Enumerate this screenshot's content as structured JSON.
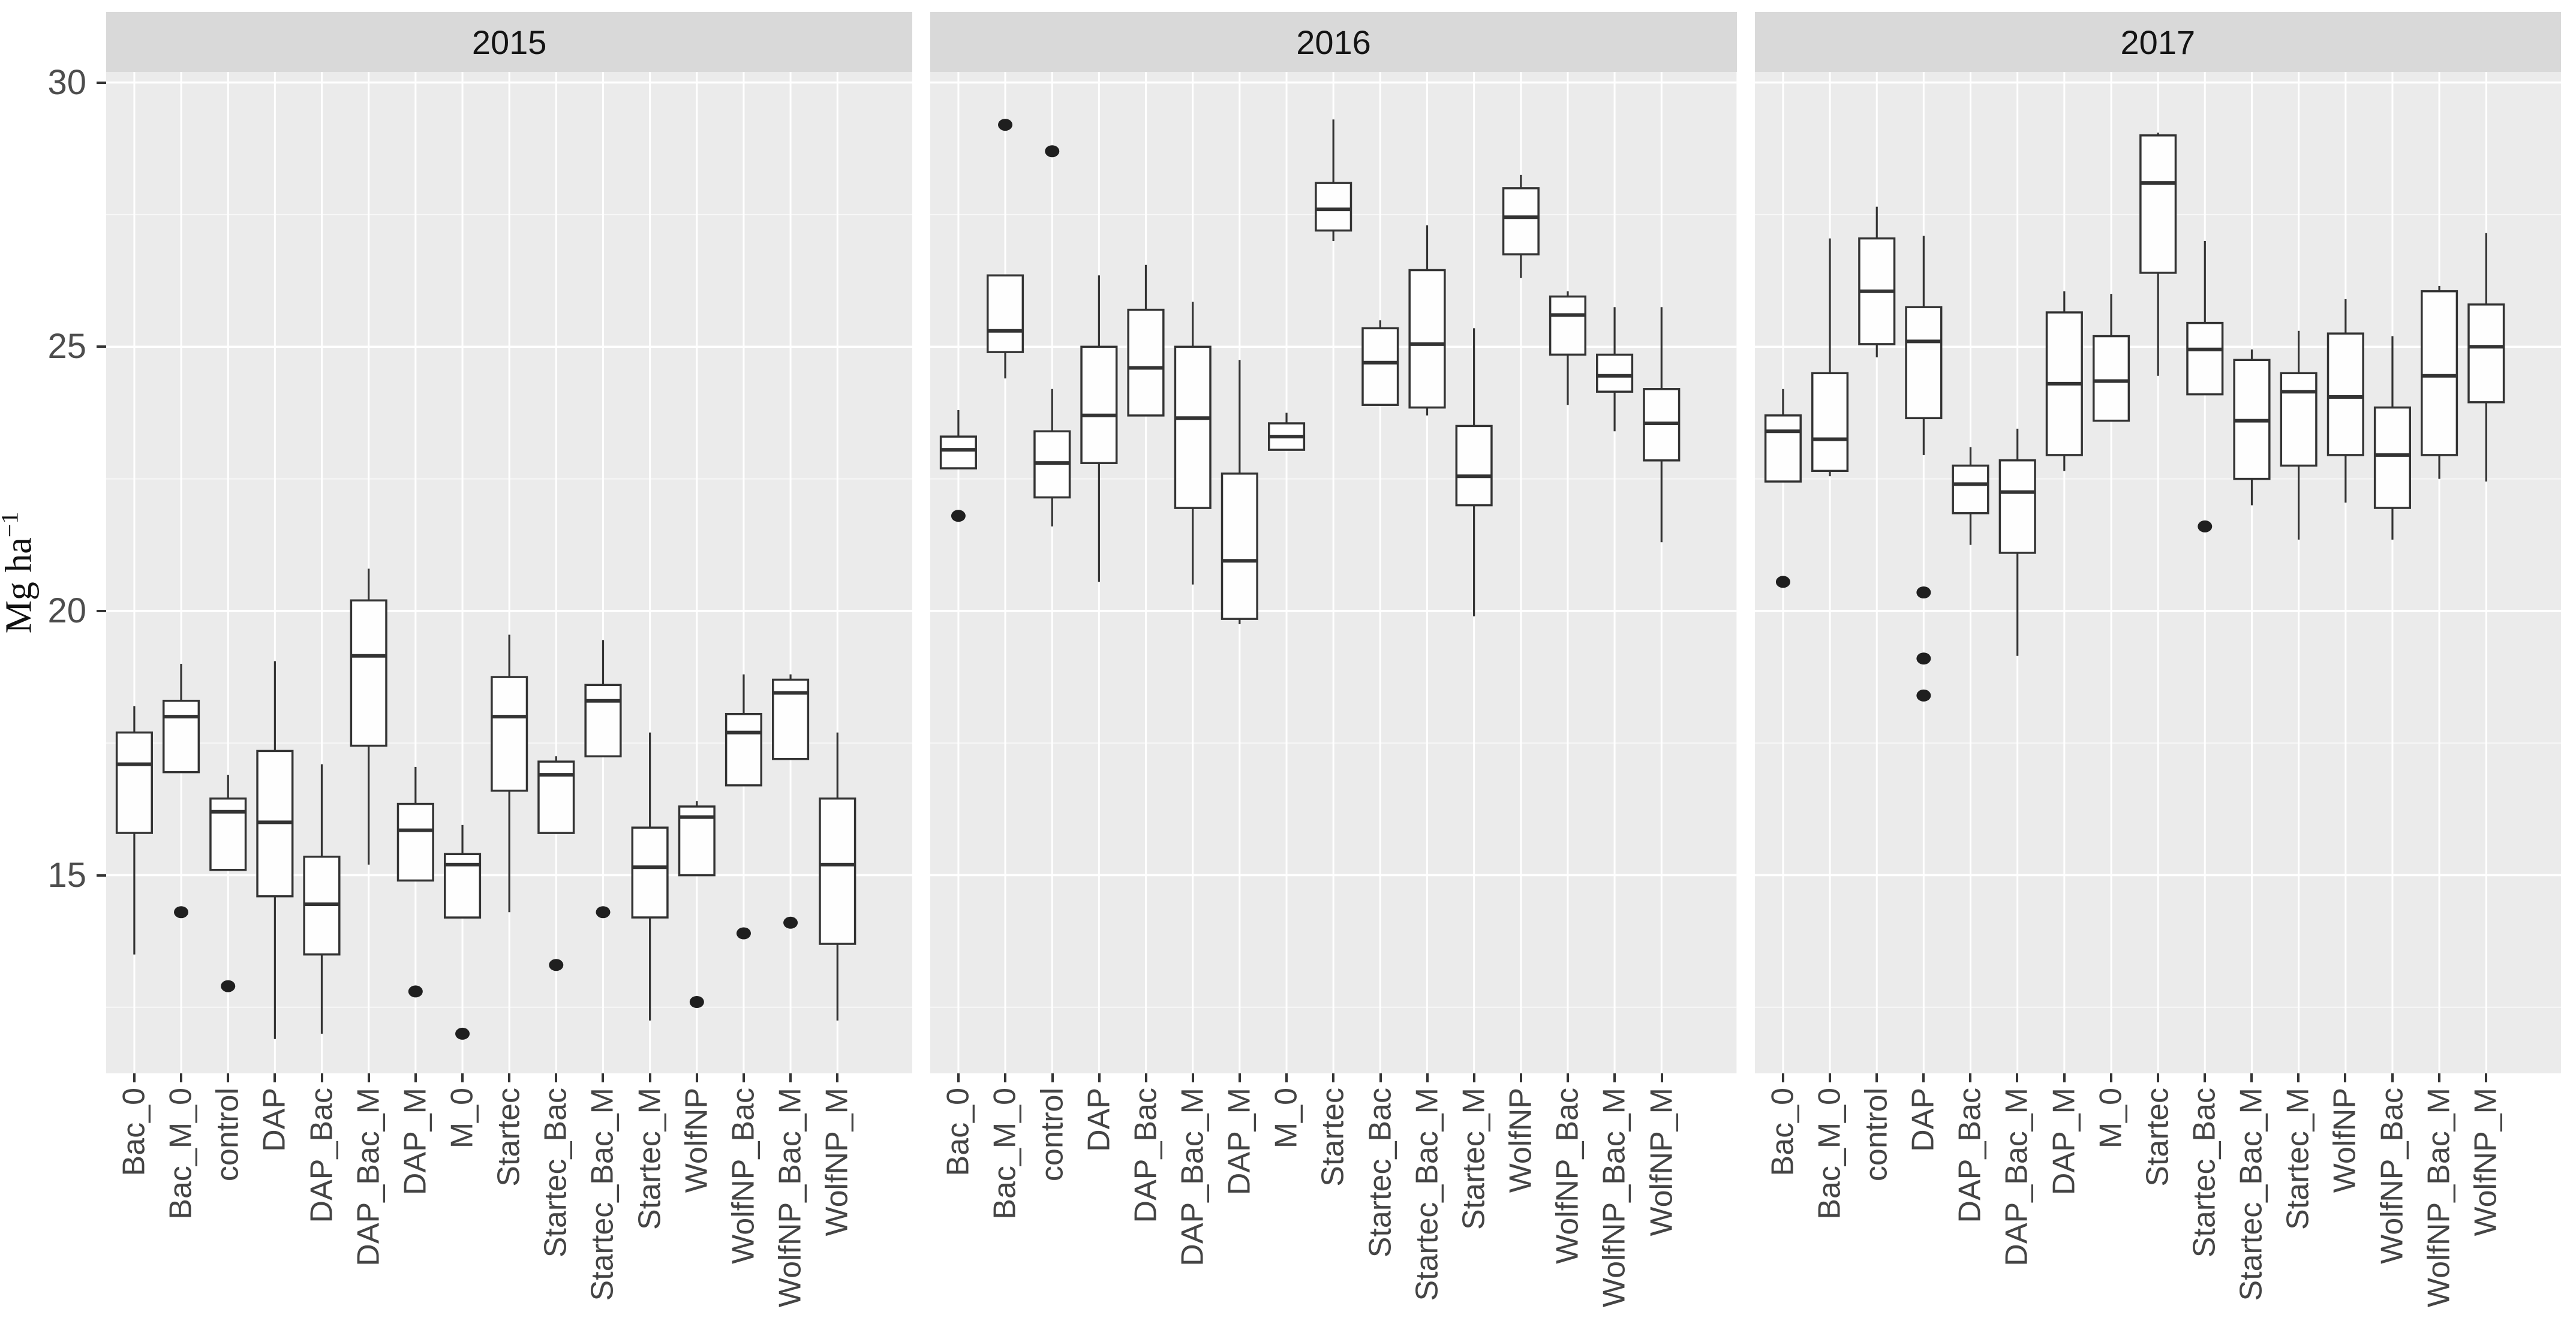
{
  "y_axis": {
    "title_base": "Mg ha",
    "title_sup": "−1",
    "ticks": [
      "30",
      "25",
      "20",
      "15"
    ],
    "tick_values": [
      30,
      25,
      20,
      15
    ]
  },
  "colors": {
    "panel_background": "#ebebeb",
    "strip_background": "#d9d9d9",
    "gridline": "#ffffff",
    "box_stroke": "#333333",
    "box_fill": "#fefefe",
    "outlier": "#1f1f1f",
    "axis_text": "#4d4d4d",
    "strip_text": "#141414"
  },
  "chart_data": {
    "type": "boxplot",
    "title": "",
    "xlabel": "",
    "ylabel": "Mg ha⁻¹",
    "ylim": [
      11.25,
      30.2
    ],
    "y_major_gridlines": [
      15,
      20,
      25,
      30
    ],
    "y_minor_gridlines": [
      12.5,
      17.5,
      22.5,
      27.5
    ],
    "grid": "white on gray panel",
    "legend": "none",
    "facets": [
      "2015",
      "2016",
      "2017"
    ],
    "categories": [
      "Bac_0",
      "Bac_M_0",
      "control",
      "DAP",
      "DAP_Bac",
      "DAP_Bac_M",
      "DAP_M",
      "M_0",
      "Startec",
      "Startec_Bac",
      "Startec_Bac_M",
      "Startec_M",
      "WolfNP",
      "WolfNP_Bac",
      "WolfNP_Bac_M",
      "WolfNP_M"
    ],
    "series": [
      {
        "name": "2015",
        "boxes": [
          {
            "category": "Bac_0",
            "lo": 13.5,
            "q1": 15.8,
            "med": 17.1,
            "q3": 17.7,
            "hi": 18.2,
            "outliers": []
          },
          {
            "category": "Bac_M_0",
            "lo": 16.95,
            "q1": 16.95,
            "med": 18.0,
            "q3": 18.3,
            "hi": 19.0,
            "outliers": [
              14.3
            ]
          },
          {
            "category": "control",
            "lo": 15.1,
            "q1": 15.1,
            "med": 16.2,
            "q3": 16.45,
            "hi": 16.9,
            "outliers": [
              12.9
            ]
          },
          {
            "category": "DAP",
            "lo": 11.9,
            "q1": 14.6,
            "med": 16.0,
            "q3": 17.35,
            "hi": 19.05,
            "outliers": []
          },
          {
            "category": "DAP_Bac",
            "lo": 12.0,
            "q1": 13.5,
            "med": 14.45,
            "q3": 15.35,
            "hi": 17.1,
            "outliers": []
          },
          {
            "category": "DAP_Bac_M",
            "lo": 15.2,
            "q1": 17.45,
            "med": 19.15,
            "q3": 20.2,
            "hi": 20.8,
            "outliers": []
          },
          {
            "category": "DAP_M",
            "lo": 14.9,
            "q1": 14.9,
            "med": 15.85,
            "q3": 16.35,
            "hi": 17.05,
            "outliers": [
              12.8
            ]
          },
          {
            "category": "M_0",
            "lo": 14.2,
            "q1": 14.2,
            "med": 15.2,
            "q3": 15.4,
            "hi": 15.95,
            "outliers": [
              12.0
            ]
          },
          {
            "category": "Startec",
            "lo": 14.3,
            "q1": 16.6,
            "med": 18.0,
            "q3": 18.75,
            "hi": 19.55,
            "outliers": []
          },
          {
            "category": "Startec_Bac",
            "lo": 15.8,
            "q1": 15.8,
            "med": 16.9,
            "q3": 17.15,
            "hi": 17.25,
            "outliers": [
              13.3
            ]
          },
          {
            "category": "Startec_Bac_M",
            "lo": 17.25,
            "q1": 17.25,
            "med": 18.3,
            "q3": 18.6,
            "hi": 19.45,
            "outliers": [
              14.3
            ]
          },
          {
            "category": "Startec_M",
            "lo": 12.25,
            "q1": 14.2,
            "med": 15.15,
            "q3": 15.9,
            "hi": 17.7,
            "outliers": []
          },
          {
            "category": "WolfNP",
            "lo": 15.0,
            "q1": 15.0,
            "med": 16.1,
            "q3": 16.3,
            "hi": 16.4,
            "outliers": [
              12.6
            ]
          },
          {
            "category": "WolfNP_Bac",
            "lo": 16.7,
            "q1": 16.7,
            "med": 17.7,
            "q3": 18.05,
            "hi": 18.8,
            "outliers": [
              13.9
            ]
          },
          {
            "category": "WolfNP_Bac_M",
            "lo": 17.2,
            "q1": 17.2,
            "med": 18.45,
            "q3": 18.7,
            "hi": 18.8,
            "outliers": [
              14.1
            ]
          },
          {
            "category": "WolfNP_M",
            "lo": 12.25,
            "q1": 13.7,
            "med": 15.2,
            "q3": 16.45,
            "hi": 17.7,
            "outliers": []
          }
        ]
      },
      {
        "name": "2016",
        "boxes": [
          {
            "category": "Bac_0",
            "lo": 22.7,
            "q1": 22.7,
            "med": 23.05,
            "q3": 23.3,
            "hi": 23.8,
            "outliers": [
              21.8
            ]
          },
          {
            "category": "Bac_M_0",
            "lo": 24.4,
            "q1": 24.9,
            "med": 25.3,
            "q3": 26.35,
            "hi": 26.35,
            "outliers": [
              29.2
            ]
          },
          {
            "category": "control",
            "lo": 21.6,
            "q1": 22.15,
            "med": 22.8,
            "q3": 23.4,
            "hi": 24.2,
            "outliers": [
              28.7
            ]
          },
          {
            "category": "DAP",
            "lo": 20.55,
            "q1": 22.8,
            "med": 23.7,
            "q3": 25.0,
            "hi": 26.35,
            "outliers": []
          },
          {
            "category": "DAP_Bac",
            "lo": 23.7,
            "q1": 23.7,
            "med": 24.6,
            "q3": 25.7,
            "hi": 26.55,
            "outliers": []
          },
          {
            "category": "DAP_Bac_M",
            "lo": 20.5,
            "q1": 21.95,
            "med": 23.65,
            "q3": 25.0,
            "hi": 25.85,
            "outliers": []
          },
          {
            "category": "DAP_M",
            "lo": 19.75,
            "q1": 19.85,
            "med": 20.95,
            "q3": 22.6,
            "hi": 24.75,
            "outliers": []
          },
          {
            "category": "M_0",
            "lo": 23.05,
            "q1": 23.05,
            "med": 23.3,
            "q3": 23.55,
            "hi": 23.75,
            "outliers": []
          },
          {
            "category": "Startec",
            "lo": 27.0,
            "q1": 27.2,
            "med": 27.6,
            "q3": 28.1,
            "hi": 29.3,
            "outliers": []
          },
          {
            "category": "Startec_Bac",
            "lo": 23.9,
            "q1": 23.9,
            "med": 24.7,
            "q3": 25.35,
            "hi": 25.5,
            "outliers": []
          },
          {
            "category": "Startec_Bac_M",
            "lo": 23.7,
            "q1": 23.85,
            "med": 25.05,
            "q3": 26.45,
            "hi": 27.3,
            "outliers": []
          },
          {
            "category": "Startec_M",
            "lo": 19.9,
            "q1": 22.0,
            "med": 22.55,
            "q3": 23.5,
            "hi": 25.35,
            "outliers": []
          },
          {
            "category": "WolfNP",
            "lo": 26.3,
            "q1": 26.75,
            "med": 27.45,
            "q3": 28.0,
            "hi": 28.25,
            "outliers": []
          },
          {
            "category": "WolfNP_Bac",
            "lo": 23.9,
            "q1": 24.85,
            "med": 25.6,
            "q3": 25.95,
            "hi": 26.05,
            "outliers": []
          },
          {
            "category": "WolfNP_Bac_M",
            "lo": 23.4,
            "q1": 24.15,
            "med": 24.45,
            "q3": 24.85,
            "hi": 25.75,
            "outliers": []
          },
          {
            "category": "WolfNP_M",
            "lo": 21.3,
            "q1": 22.85,
            "med": 23.55,
            "q3": 24.2,
            "hi": 25.75,
            "outliers": []
          }
        ]
      },
      {
        "name": "2017",
        "boxes": [
          {
            "category": "Bac_0",
            "lo": 22.45,
            "q1": 22.45,
            "med": 23.4,
            "q3": 23.7,
            "hi": 24.2,
            "outliers": [
              20.55
            ]
          },
          {
            "category": "Bac_M_0",
            "lo": 22.55,
            "q1": 22.65,
            "med": 23.25,
            "q3": 24.5,
            "hi": 27.05,
            "outliers": []
          },
          {
            "category": "control",
            "lo": 24.8,
            "q1": 25.05,
            "med": 26.05,
            "q3": 27.05,
            "hi": 27.65,
            "outliers": []
          },
          {
            "category": "DAP",
            "lo": 22.95,
            "q1": 23.65,
            "med": 25.1,
            "q3": 25.75,
            "hi": 27.1,
            "outliers": [
              20.35,
              19.1,
              18.4
            ]
          },
          {
            "category": "DAP_Bac",
            "lo": 21.25,
            "q1": 21.85,
            "med": 22.4,
            "q3": 22.75,
            "hi": 23.1,
            "outliers": []
          },
          {
            "category": "DAP_Bac_M",
            "lo": 19.15,
            "q1": 21.1,
            "med": 22.25,
            "q3": 22.85,
            "hi": 23.45,
            "outliers": []
          },
          {
            "category": "DAP_M",
            "lo": 22.65,
            "q1": 22.95,
            "med": 24.3,
            "q3": 25.65,
            "hi": 26.05,
            "outliers": []
          },
          {
            "category": "M_0",
            "lo": 23.6,
            "q1": 23.6,
            "med": 24.35,
            "q3": 25.2,
            "hi": 26.0,
            "outliers": []
          },
          {
            "category": "Startec",
            "lo": 24.45,
            "q1": 26.4,
            "med": 28.1,
            "q3": 29.0,
            "hi": 29.05,
            "outliers": []
          },
          {
            "category": "Startec_Bac",
            "lo": 24.1,
            "q1": 24.1,
            "med": 24.95,
            "q3": 25.45,
            "hi": 27.0,
            "outliers": [
              21.6
            ]
          },
          {
            "category": "Startec_Bac_M",
            "lo": 22.0,
            "q1": 22.5,
            "med": 23.6,
            "q3": 24.75,
            "hi": 24.95,
            "outliers": []
          },
          {
            "category": "Startec_M",
            "lo": 21.35,
            "q1": 22.75,
            "med": 24.15,
            "q3": 24.5,
            "hi": 25.3,
            "outliers": []
          },
          {
            "category": "WolfNP",
            "lo": 22.05,
            "q1": 22.95,
            "med": 24.05,
            "q3": 25.25,
            "hi": 25.9,
            "outliers": []
          },
          {
            "category": "WolfNP_Bac",
            "lo": 21.35,
            "q1": 21.95,
            "med": 22.95,
            "q3": 23.85,
            "hi": 25.2,
            "outliers": []
          },
          {
            "category": "WolfNP_Bac_M",
            "lo": 22.5,
            "q1": 22.95,
            "med": 24.45,
            "q3": 26.05,
            "hi": 26.15,
            "outliers": []
          },
          {
            "category": "WolfNP_M",
            "lo": 22.45,
            "q1": 23.95,
            "med": 25.0,
            "q3": 25.8,
            "hi": 27.15,
            "outliers": []
          }
        ]
      }
    ]
  }
}
